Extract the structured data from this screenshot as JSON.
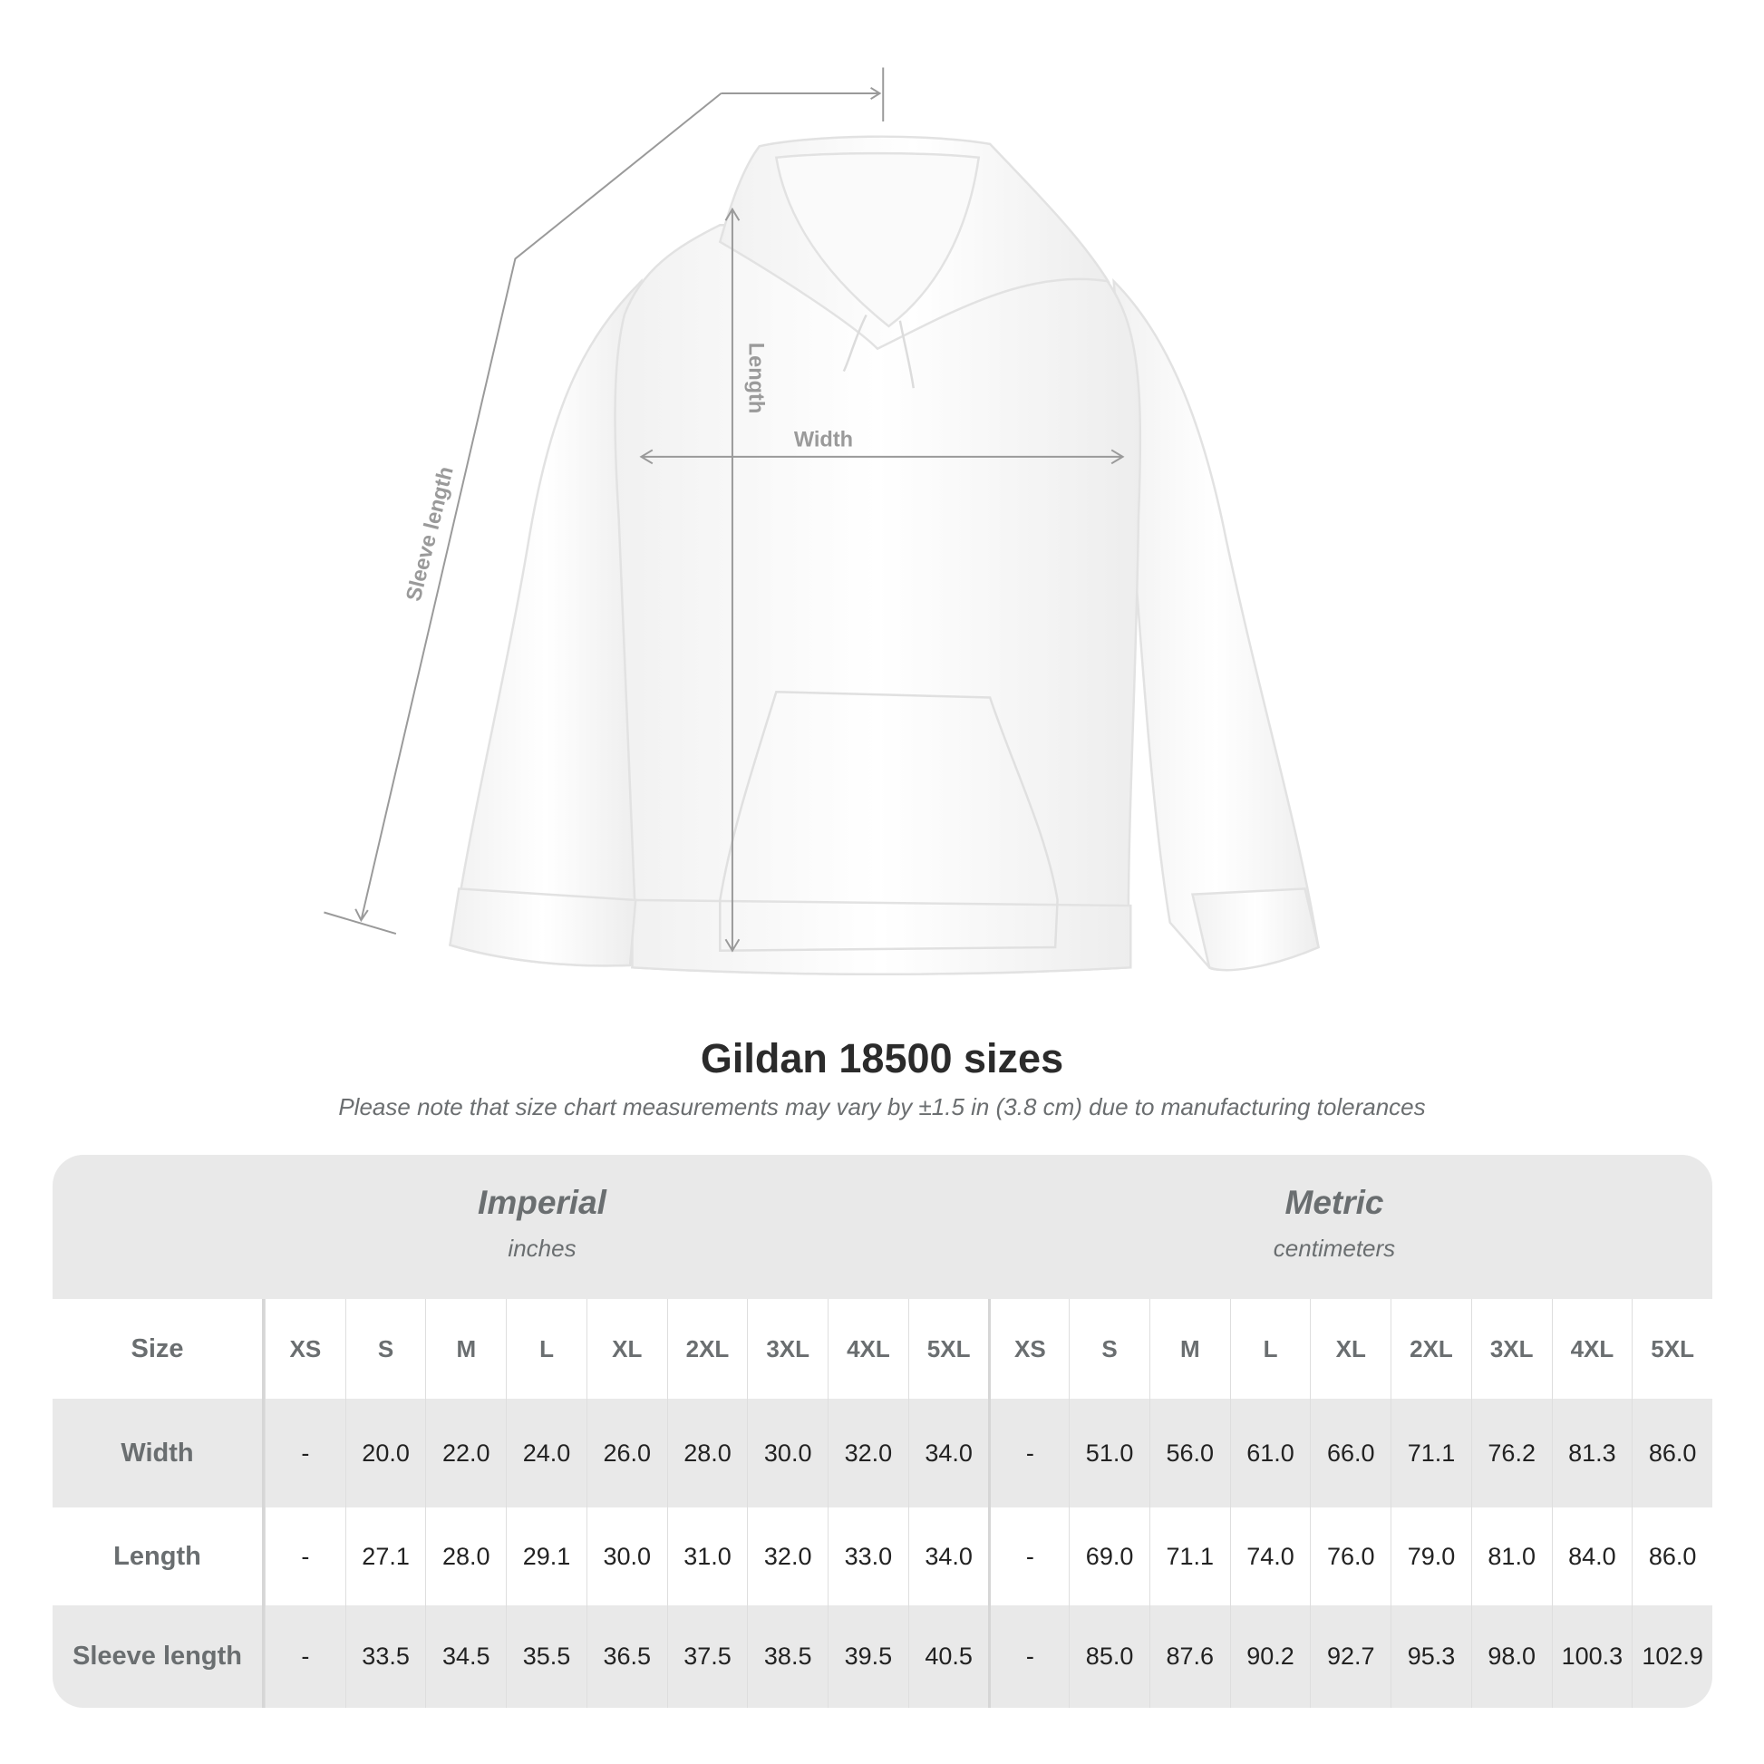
{
  "diagram": {
    "labels": {
      "sleeve_length": "Sleeve length",
      "length": "Length",
      "width": "Width"
    },
    "garment_color": "#ffffff",
    "line_color": "#9a9a9a"
  },
  "title": "Gildan 18500 sizes",
  "subtitle": "Please note that size chart measurements may vary by ±1.5 in (3.8 cm) due to manufacturing tolerances",
  "table": {
    "imperial": {
      "name": "Imperial",
      "unit": "inches"
    },
    "metric": {
      "name": "Metric",
      "unit": "centimeters"
    },
    "size_label": "Size",
    "sizes": [
      "XS",
      "S",
      "M",
      "L",
      "XL",
      "2XL",
      "3XL",
      "4XL",
      "5XL"
    ],
    "rows": [
      {
        "label": "Width",
        "imperial": [
          "-",
          "20.0",
          "22.0",
          "24.0",
          "26.0",
          "28.0",
          "30.0",
          "32.0",
          "34.0"
        ],
        "metric": [
          "-",
          "51.0",
          "56.0",
          "61.0",
          "66.0",
          "71.1",
          "76.2",
          "81.3",
          "86.0"
        ]
      },
      {
        "label": "Length",
        "imperial": [
          "-",
          "27.1",
          "28.0",
          "29.1",
          "30.0",
          "31.0",
          "32.0",
          "33.0",
          "34.0"
        ],
        "metric": [
          "-",
          "69.0",
          "71.1",
          "74.0",
          "76.0",
          "79.0",
          "81.0",
          "84.0",
          "86.0"
        ]
      },
      {
        "label": "Sleeve length",
        "imperial": [
          "-",
          "33.5",
          "34.5",
          "35.5",
          "36.5",
          "37.5",
          "38.5",
          "39.5",
          "40.5"
        ],
        "metric": [
          "-",
          "85.0",
          "87.6",
          "90.2",
          "92.7",
          "95.3",
          "98.0",
          "100.3",
          "102.9"
        ]
      }
    ]
  }
}
